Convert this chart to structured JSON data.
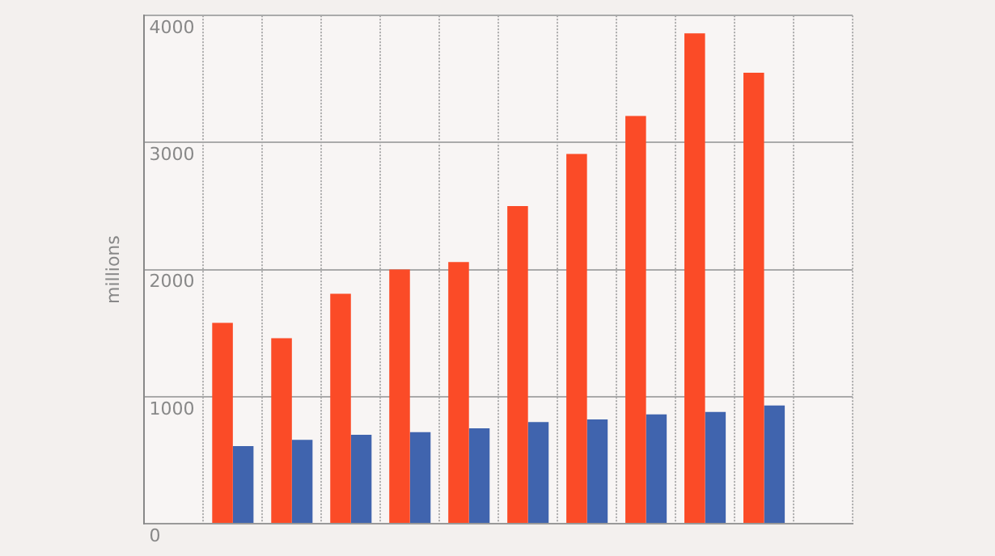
{
  "chart_data": {
    "type": "bar",
    "ylabel": "millions",
    "categories": [
      null,
      null,
      null,
      null,
      null,
      null,
      null,
      null,
      null,
      null
    ],
    "series": [
      {
        "color": "#fb4b27",
        "values": [
          1580,
          1460,
          1810,
          2000,
          2060,
          2500,
          2910,
          3210,
          3860,
          3550
        ]
      },
      {
        "color": "#4064ae",
        "values": [
          610,
          660,
          700,
          720,
          750,
          800,
          820,
          860,
          880,
          930
        ]
      }
    ],
    "ylim": [
      0,
      4000
    ],
    "yticks": [
      0,
      1000,
      2000,
      3000,
      4000
    ],
    "grid": true,
    "tick_labels": "y"
  }
}
